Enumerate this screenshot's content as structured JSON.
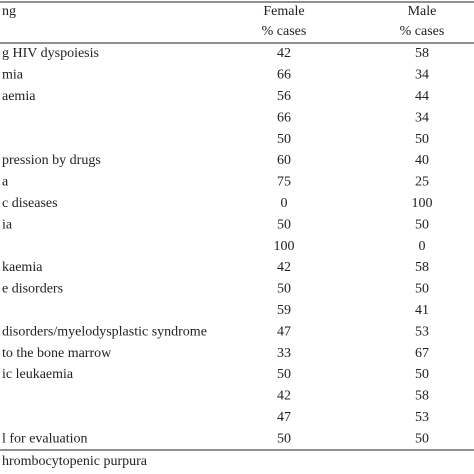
{
  "table": {
    "header": [
      "ng",
      "Female",
      "Male"
    ],
    "subheader": [
      "% cases",
      "% cases"
    ],
    "rows": [
      [
        "g HIV dyspoiesis",
        42,
        58
      ],
      [
        "mia",
        66,
        34
      ],
      [
        "aemia",
        56,
        44
      ],
      [
        null,
        66,
        34
      ],
      [
        null,
        50,
        50
      ],
      [
        "pression by drugs",
        60,
        40
      ],
      [
        "a",
        75,
        25
      ],
      [
        "c diseases",
        0,
        100
      ],
      [
        "ia",
        50,
        50
      ],
      [
        null,
        100,
        0
      ],
      [
        "kaemia",
        42,
        58
      ],
      [
        "e disorders",
        50,
        50
      ],
      [
        null,
        59,
        41
      ],
      [
        "disorders/myelodysplastic syndrome",
        47,
        53
      ],
      [
        "to the bone marrow",
        33,
        67
      ],
      [
        "ic leukaemia",
        50,
        50
      ],
      [
        null,
        42,
        58
      ],
      [
        null,
        47,
        53
      ],
      [
        "l for evaluation",
        50,
        50
      ]
    ]
  },
  "footnote": "hrombocytopenic purpura"
}
